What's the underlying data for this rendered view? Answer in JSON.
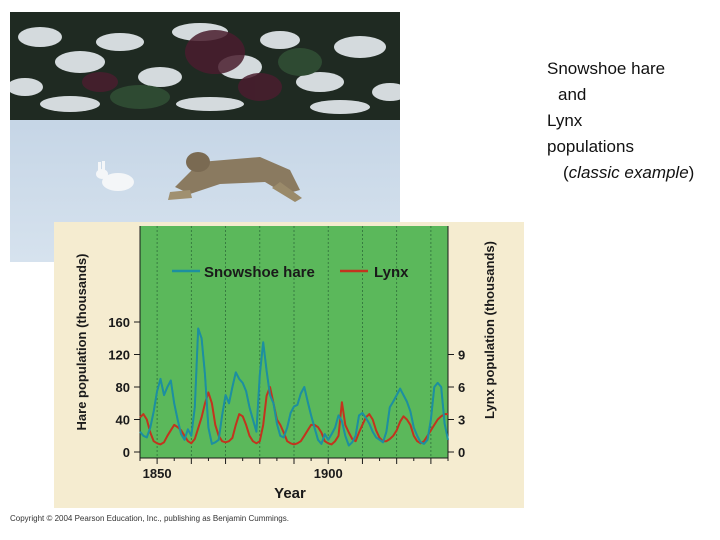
{
  "caption": {
    "line1": "Snowshoe hare",
    "line2": "and",
    "line3": "Lynx",
    "line4": "populations",
    "line5_open": "(",
    "line5_italic": "classic example",
    "line5_close": ")"
  },
  "photo": {
    "subject": "lynx chasing snowshoe hare in snow"
  },
  "copyright": "Copyright © 2004 Pearson Education, Inc., publishing as Benjamin Cummings.",
  "colors": {
    "hare": "#1d8fa0",
    "lynx": "#c2341e",
    "plot_bg": "#5bb85b",
    "panel_bg": "#f5ecd0"
  },
  "chart_data": {
    "type": "line",
    "xlabel": "Year",
    "ylabel_left": "Hare population (thousands)",
    "ylabel_right": "Lynx population (thousands)",
    "xlim": [
      1845,
      1935
    ],
    "ylim_left": [
      0,
      160
    ],
    "ylim_right": [
      0,
      12
    ],
    "x_ticks": [
      1850,
      1900
    ],
    "y_ticks_left": [
      0,
      40,
      80,
      120,
      160
    ],
    "y_ticks_right": [
      0,
      3,
      6,
      9
    ],
    "grid": "vertical",
    "legend_position": "top",
    "series": [
      {
        "name": "Snowshoe hare",
        "axis": "left",
        "x": [
          1845,
          1846,
          1847,
          1848,
          1849,
          1850,
          1851,
          1852,
          1853,
          1854,
          1855,
          1856,
          1857,
          1858,
          1859,
          1860,
          1861,
          1862,
          1863,
          1864,
          1865,
          1866,
          1867,
          1868,
          1869,
          1870,
          1871,
          1872,
          1873,
          1874,
          1875,
          1876,
          1877,
          1878,
          1879,
          1880,
          1881,
          1882,
          1883,
          1884,
          1885,
          1886,
          1887,
          1888,
          1889,
          1890,
          1891,
          1892,
          1893,
          1894,
          1895,
          1896,
          1897,
          1898,
          1899,
          1900,
          1901,
          1902,
          1903,
          1904,
          1905,
          1906,
          1907,
          1908,
          1909,
          1910,
          1911,
          1912,
          1913,
          1914,
          1915,
          1916,
          1917,
          1918,
          1919,
          1920,
          1921,
          1922,
          1923,
          1924,
          1925,
          1926,
          1927,
          1928,
          1929,
          1930,
          1931,
          1932,
          1933,
          1934,
          1935
        ],
        "values": [
          25,
          20,
          18,
          30,
          50,
          75,
          90,
          70,
          80,
          88,
          60,
          40,
          22,
          15,
          28,
          20,
          55,
          152,
          140,
          95,
          30,
          10,
          12,
          15,
          45,
          70,
          60,
          80,
          98,
          90,
          85,
          75,
          55,
          40,
          25,
          95,
          135,
          100,
          70,
          60,
          35,
          20,
          18,
          30,
          48,
          56,
          58,
          72,
          80,
          62,
          45,
          30,
          15,
          10,
          22,
          15,
          22,
          30,
          45,
          38,
          20,
          8,
          12,
          20,
          45,
          48,
          42,
          35,
          25,
          18,
          15,
          12,
          25,
          55,
          62,
          70,
          78,
          70,
          62,
          50,
          30,
          20,
          12,
          10,
          15,
          40,
          80,
          85,
          80,
          35,
          15
        ]
      },
      {
        "name": "Lynx",
        "axis": "right",
        "x": [
          1845,
          1846,
          1847,
          1848,
          1849,
          1850,
          1851,
          1852,
          1853,
          1854,
          1855,
          1856,
          1857,
          1858,
          1859,
          1860,
          1861,
          1862,
          1863,
          1864,
          1865,
          1866,
          1867,
          1868,
          1869,
          1870,
          1871,
          1872,
          1873,
          1874,
          1875,
          1876,
          1877,
          1878,
          1879,
          1880,
          1881,
          1882,
          1883,
          1884,
          1885,
          1886,
          1887,
          1888,
          1889,
          1890,
          1891,
          1892,
          1893,
          1894,
          1895,
          1896,
          1897,
          1898,
          1899,
          1900,
          1901,
          1902,
          1903,
          1904,
          1905,
          1906,
          1907,
          1908,
          1909,
          1910,
          1911,
          1912,
          1913,
          1914,
          1915,
          1916,
          1917,
          1918,
          1919,
          1920,
          1921,
          1922,
          1923,
          1924,
          1925,
          1926,
          1927,
          1928,
          1929,
          1930,
          1931,
          1932,
          1933,
          1934,
          1935
        ],
        "values": [
          3.2,
          3.5,
          3.0,
          1.8,
          1.0,
          0.8,
          0.7,
          0.9,
          1.5,
          2.0,
          2.5,
          2.3,
          2.0,
          1.5,
          1.0,
          0.8,
          1.2,
          2.2,
          3.2,
          4.5,
          5.5,
          4.5,
          2.5,
          1.5,
          1.0,
          0.9,
          1.0,
          1.3,
          2.5,
          3.5,
          3.3,
          2.5,
          1.5,
          1.0,
          0.8,
          1.0,
          2.5,
          5.2,
          6.0,
          4.5,
          3.0,
          2.5,
          1.8,
          1.0,
          0.8,
          0.7,
          0.8,
          1.0,
          1.5,
          2.0,
          2.5,
          2.5,
          2.3,
          1.8,
          1.0,
          0.8,
          0.7,
          1.0,
          1.5,
          4.6,
          2.5,
          1.8,
          1.2,
          1.0,
          1.8,
          2.5,
          3.2,
          3.5,
          3.0,
          2.0,
          1.3,
          1.0,
          1.0,
          1.2,
          1.5,
          2.0,
          2.8,
          3.3,
          3.0,
          2.5,
          1.5,
          1.0,
          0.8,
          1.0,
          1.5,
          2.0,
          2.5,
          3.0,
          3.3,
          3.5,
          3.5
        ]
      }
    ]
  }
}
